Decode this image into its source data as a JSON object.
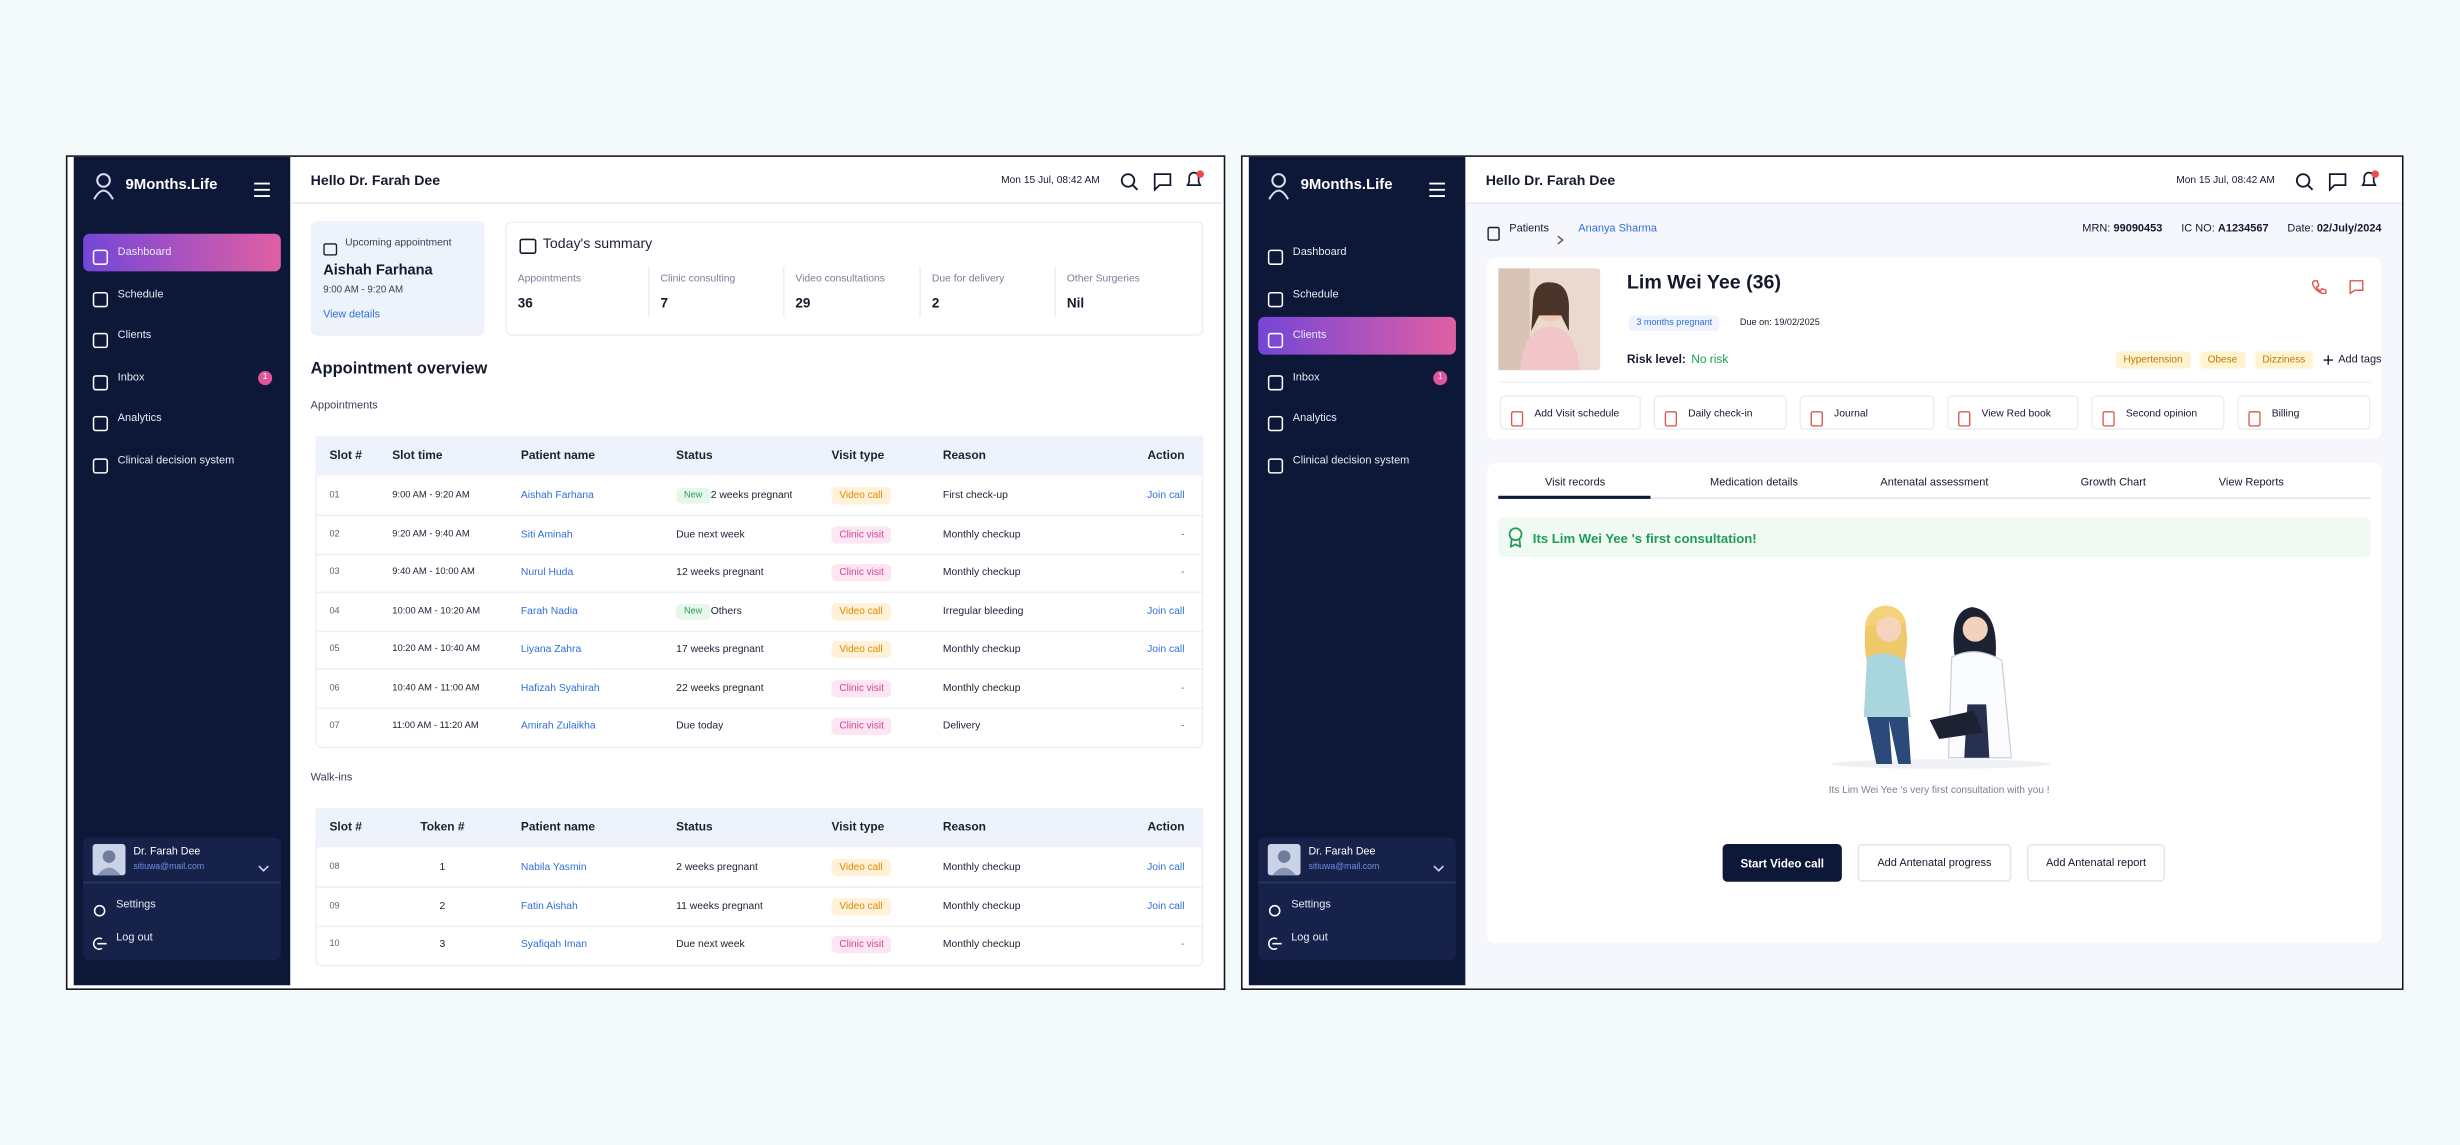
{
  "left": {
    "sidebar": {
      "brand": "9Months.Life",
      "nav": [
        "Dashboard",
        "Schedule",
        "Clients",
        "Inbox",
        "Analytics",
        "Clinical decision system"
      ],
      "inbox_badge": "1",
      "user_name": "Dr. Farah Dee",
      "user_email": "sitiuwa@mail.com",
      "settings": "Settings",
      "logout": "Log out"
    },
    "header": {
      "greeting": "Hello Dr. Farah Dee",
      "datetime": "Mon 15 Jul, 08:42 AM"
    },
    "upcoming": {
      "title": "Upcoming appointment",
      "name": "Aishah Farhana",
      "time": "9:00 AM - 9:20 AM",
      "link": "View details"
    },
    "summary": {
      "title": "Today's summary",
      "items": [
        {
          "label": "Appointments",
          "value": "36"
        },
        {
          "label": "Clinic consulting",
          "value": "7"
        },
        {
          "label": "Video consultations",
          "value": "29"
        },
        {
          "label": "Due for delivery",
          "value": "2"
        },
        {
          "label": "Other Surgeries",
          "value": "Nil"
        }
      ]
    },
    "overview_title": "Appointment overview",
    "visit_type_styles": {
      "Video call": {
        "bg": "#fff2d9",
        "fg": "#e08a00"
      },
      "Clinic visit": {
        "bg": "#fce6f2",
        "fg": "#d0459a"
      }
    },
    "appointments": {
      "title": "Appointments",
      "columns": [
        "Slot #",
        "Slot time",
        "Patient name",
        "Status",
        "Visit type",
        "Reason",
        "Action"
      ],
      "rows": [
        {
          "slot": "01",
          "time": "9:00 AM - 9:20 AM",
          "patient": "Aishah Farhana",
          "status_badge": "New",
          "status": "2 weeks pregnant",
          "visit_type": "Video call",
          "reason": "First check-up",
          "action": "Join call"
        },
        {
          "slot": "02",
          "time": "9:20 AM - 9:40 AM",
          "patient": "Siti Aminah",
          "status": "Due next week",
          "visit_type": "Clinic visit",
          "reason": "Monthly checkup",
          "action": "-"
        },
        {
          "slot": "03",
          "time": "9:40 AM - 10:00 AM",
          "patient": "Nurul Huda",
          "status": "12 weeks pregnant",
          "visit_type": "Clinic visit",
          "reason": "Monthly checkup",
          "action": "-"
        },
        {
          "slot": "04",
          "time": "10:00 AM - 10:20 AM",
          "patient": "Farah Nadia",
          "status_badge": "New",
          "status": "Others",
          "visit_type": "Video call",
          "reason": "Irregular bleeding",
          "action": "Join call"
        },
        {
          "slot": "05",
          "time": "10:20 AM - 10:40 AM",
          "patient": "Liyana Zahra",
          "status": "17 weeks pregnant",
          "visit_type": "Video call",
          "reason": "Monthly checkup",
          "action": "Join call"
        },
        {
          "slot": "06",
          "time": "10:40 AM - 11:00 AM",
          "patient": "Hafizah Syahirah",
          "status": "22 weeks pregnant",
          "visit_type": "Clinic visit",
          "reason": "Monthly checkup",
          "action": "-"
        },
        {
          "slot": "07",
          "time": "11:00 AM - 11:20 AM",
          "patient": "Amirah Zulaikha",
          "status": "Due today",
          "visit_type": "Clinic visit",
          "reason": "Delivery",
          "action": "-"
        }
      ]
    },
    "walkins": {
      "title": "Walk-ins",
      "columns": [
        "Slot #",
        "Token #",
        "Patient name",
        "Status",
        "Visit type",
        "Reason",
        "Action"
      ],
      "rows": [
        {
          "slot": "08",
          "token": "1",
          "patient": "Nabila Yasmin",
          "status": "2 weeks pregnant",
          "visit_type": "Video call",
          "reason": "Monthly checkup",
          "action": "Join call"
        },
        {
          "slot": "09",
          "token": "2",
          "patient": "Fatin Aishah",
          "status": "11 weeks pregnant",
          "visit_type": "Video call",
          "reason": "Monthly checkup",
          "action": "Join call"
        },
        {
          "slot": "10",
          "token": "3",
          "patient": "Syafiqah Iman",
          "status": "Due next week",
          "visit_type": "Clinic visit",
          "reason": "Monthly checkup",
          "action": "-"
        }
      ]
    }
  },
  "right": {
    "sidebar": {
      "brand": "9Months.Life",
      "nav": [
        "Dashboard",
        "Schedule",
        "Clients",
        "Inbox",
        "Analytics",
        "Clinical decision system"
      ],
      "inbox_badge": "1",
      "user_name": "Dr. Farah Dee",
      "user_email": "sitiuwa@mail.com",
      "settings": "Settings",
      "logout": "Log out"
    },
    "header": {
      "greeting": "Hello Dr. Farah Dee",
      "datetime": "Mon 15 Jul, 08:42 AM"
    },
    "breadcrumb": {
      "root": "Patients",
      "current": "Ananya Sharma"
    },
    "ids": [
      {
        "label": "MRN:",
        "value": "99090453"
      },
      {
        "label": "IC NO:",
        "value": "A1234567"
      },
      {
        "label": "Date:",
        "value": "02/July/2024"
      }
    ],
    "patient": {
      "name": "Lim Wei Yee (36)",
      "stage": "3 months pregnant",
      "due": "Due on: 19/02/2025",
      "risk_label": "Risk level:",
      "risk": "No risk",
      "tags": [
        "Hypertension",
        "Obese",
        "Dizziness"
      ],
      "add_tags": "Add tags"
    },
    "actions": [
      "Add Visit schedule",
      "Daily check-in",
      "Journal",
      "View Red book",
      "Second opinion",
      "Billing"
    ],
    "tabs": [
      "Visit records",
      "Medication details",
      "Antenatal assessment",
      "Growth Chart",
      "View Reports"
    ],
    "banner": "Its Lim Wei Yee 's first consultation!",
    "caption": "Its Lim Wei Yee 's very first consultation with you !",
    "buttons": [
      "Start Video call",
      "Add Antenatal progress",
      "Add Antenatal report"
    ]
  }
}
